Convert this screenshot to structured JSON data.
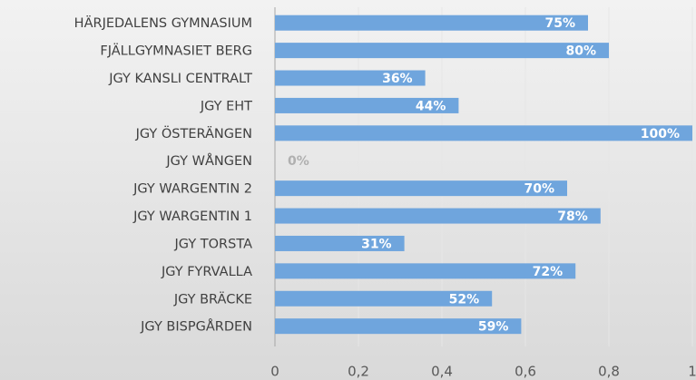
{
  "chart_data": {
    "type": "bar",
    "orientation": "horizontal",
    "categories": [
      "HÄRJEDALENS GYMNASIUM",
      "FJÄLLGYMNASIET BERG",
      "JGY KANSLI CENTRALT",
      "JGY EHT",
      "JGY ÖSTERÄNGEN",
      "JGY WÅNGEN",
      "JGY WARGENTIN 2",
      "JGY WARGENTIN 1",
      "JGY TORSTA",
      "JGY FYRVALLA",
      "JGY BRÄCKE",
      "JGY BISPGÅRDEN"
    ],
    "values": [
      0.75,
      0.8,
      0.36,
      0.44,
      1.0,
      0,
      0.7,
      0.78,
      0.31,
      0.72,
      0.52,
      0.59
    ],
    "value_labels": [
      "75%",
      "80%",
      "36%",
      "44%",
      "100%",
      "0%",
      "70%",
      "78%",
      "31%",
      "72%",
      "52%",
      "59%"
    ],
    "color": "#6fa5dd",
    "xlim": [
      0,
      1
    ],
    "xticks": [
      0,
      {
        "value": 0.2,
        "label": "0,2"
      },
      {
        "value": 0.4,
        "label": "0,4"
      },
      {
        "value": 0.6,
        "label": "0,6"
      },
      {
        "value": 0.8,
        "label": "0,8"
      },
      1
    ],
    "grid": true
  }
}
